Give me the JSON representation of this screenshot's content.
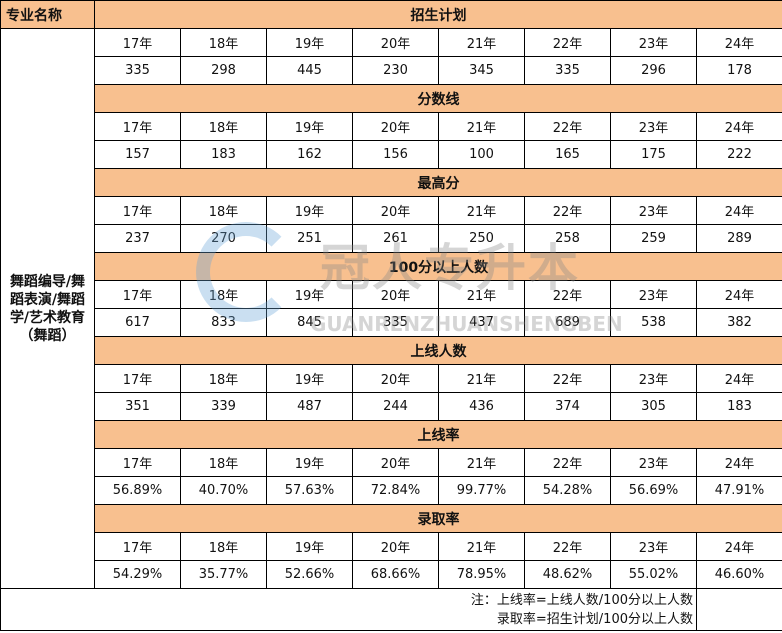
{
  "header": {
    "major_label": "专业名称"
  },
  "major": "舞蹈编导/舞蹈表演/舞蹈学/艺术教育（舞蹈）",
  "years": [
    "17年",
    "18年",
    "19年",
    "20年",
    "21年",
    "22年",
    "23年",
    "24年"
  ],
  "sections": [
    {
      "title": "招生计划",
      "values": [
        "335",
        "298",
        "445",
        "230",
        "345",
        "335",
        "296",
        "178"
      ]
    },
    {
      "title": "分数线",
      "values": [
        "157",
        "183",
        "162",
        "156",
        "100",
        "165",
        "175",
        "222"
      ]
    },
    {
      "title": "最高分",
      "values": [
        "237",
        "270",
        "251",
        "261",
        "250",
        "258",
        "259",
        "289"
      ]
    },
    {
      "title": "100分以上人数",
      "values": [
        "617",
        "833",
        "845",
        "335",
        "437",
        "689",
        "538",
        "382"
      ]
    },
    {
      "title": "上线人数",
      "values": [
        "351",
        "339",
        "487",
        "244",
        "436",
        "374",
        "305",
        "183"
      ]
    },
    {
      "title": "上线率",
      "values": [
        "56.89%",
        "40.70%",
        "57.63%",
        "72.84%",
        "99.77%",
        "54.28%",
        "56.69%",
        "47.91%"
      ]
    },
    {
      "title": "录取率",
      "values": [
        "54.29%",
        "35.77%",
        "52.66%",
        "68.66%",
        "78.95%",
        "48.62%",
        "55.02%",
        "46.60%"
      ]
    }
  ],
  "notes": [
    "注：上线率=上线人数/100分以上人数",
    "录取率=招生计划/100分以上人数"
  ],
  "watermark": {
    "cn": "冠人专升本",
    "en": "GUANRENZHUANSHENGBEN"
  },
  "colors": {
    "header_bg": "#f8c08f",
    "border": "#000000"
  }
}
